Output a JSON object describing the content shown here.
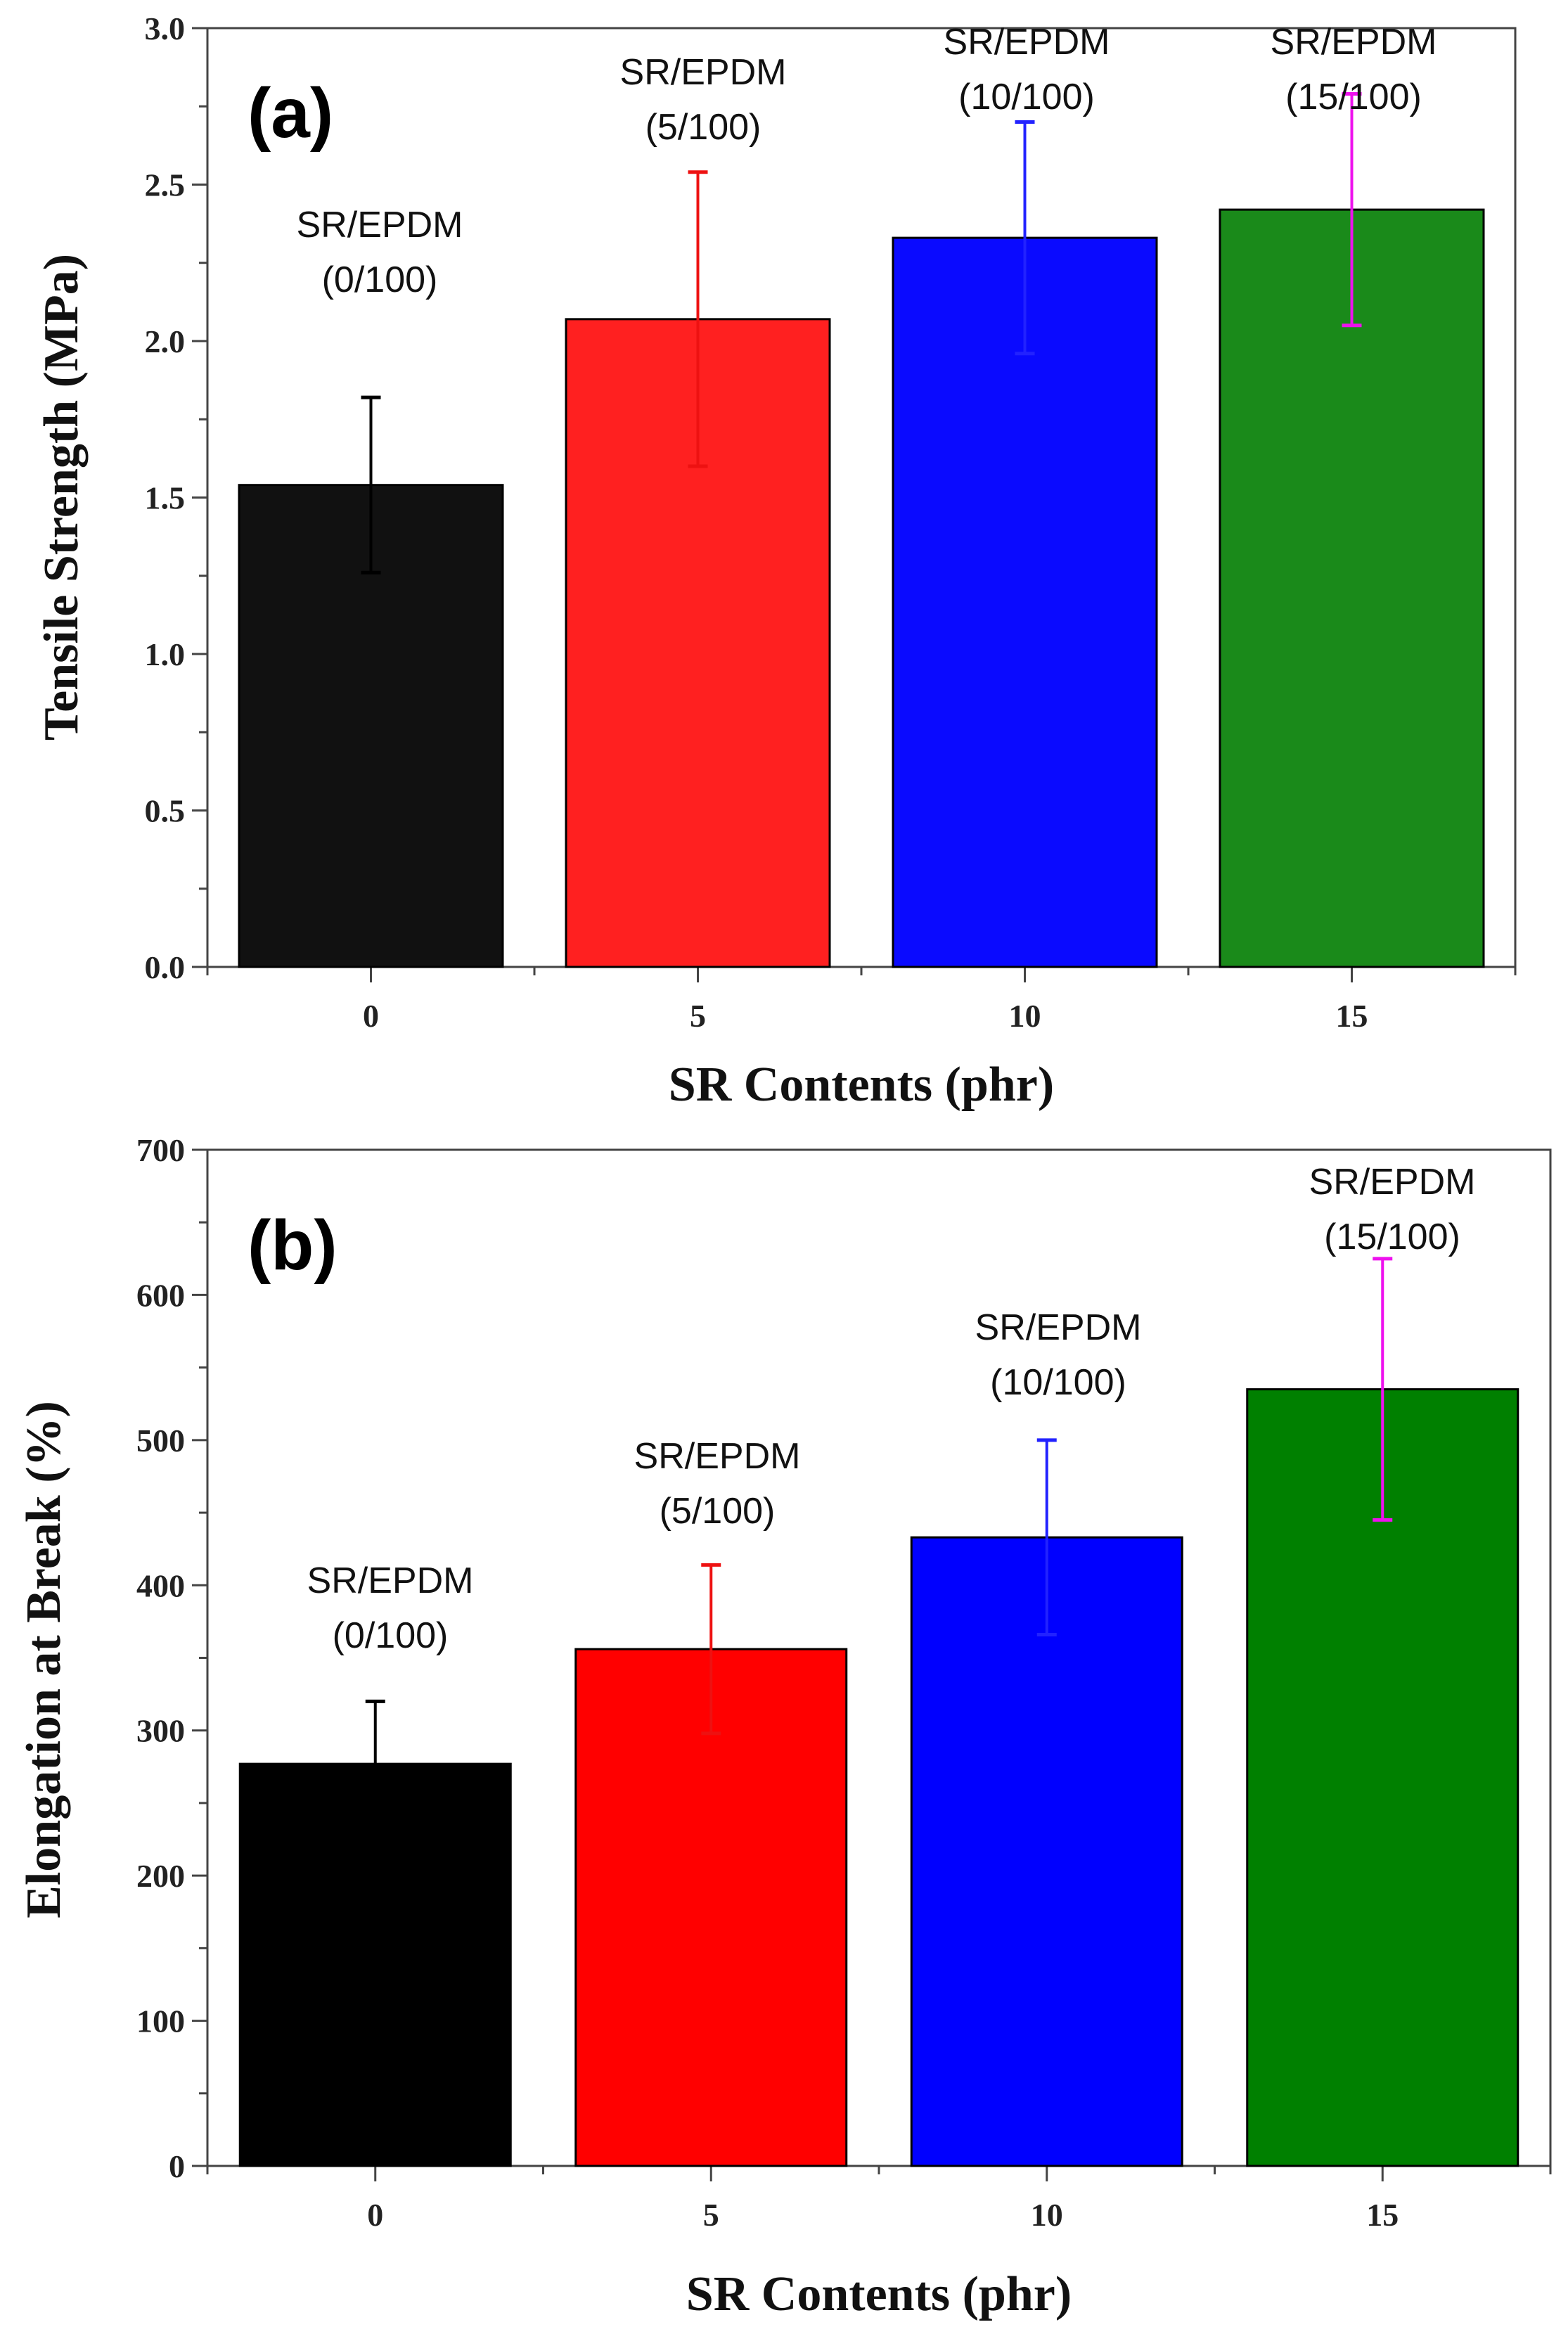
{
  "chart_data": [
    {
      "type": "bar",
      "panel_label": "(a)",
      "categories": [
        "0",
        "5",
        "10",
        "15"
      ],
      "values": [
        1.54,
        2.07,
        2.33,
        2.42
      ],
      "errors": [
        0.28,
        0.47,
        0.37,
        0.37
      ],
      "xlabel": "SR Contents (phr)",
      "ylabel": "Tensile Strength (MPa)",
      "ylim": [
        0,
        3.0
      ],
      "yticks": [
        "0.0",
        "0.5",
        "1.0",
        "1.5",
        "2.0",
        "2.5",
        "3.0"
      ],
      "annotations": [
        [
          "SR/EPDM",
          "(0/100)"
        ],
        [
          "SR/EPDM",
          "(5/100)"
        ],
        [
          "SR/EPDM",
          "(10/100)"
        ],
        [
          "SR/EPDM",
          "(15/100)"
        ]
      ],
      "bar_colors": [
        "#111111",
        "#ff2020",
        "#0a0aff",
        "#1a8a1a"
      ],
      "error_colors": [
        "#000000",
        "#ee1111",
        "#2222ff",
        "#ee11ee"
      ],
      "grid": false
    },
    {
      "type": "bar",
      "panel_label": "(b)",
      "categories": [
        "0",
        "5",
        "10",
        "15"
      ],
      "values": [
        277,
        356,
        433,
        535
      ],
      "errors": [
        43,
        58,
        67,
        90
      ],
      "xlabel": "SR Contents (phr)",
      "ylabel": "Elongation at Break (%)",
      "ylim": [
        0,
        700
      ],
      "yticks": [
        "0",
        "100",
        "200",
        "300",
        "400",
        "500",
        "600",
        "700"
      ],
      "annotations": [
        [
          "SR/EPDM",
          "(0/100)"
        ],
        [
          "SR/EPDM",
          "(5/100)"
        ],
        [
          "SR/EPDM",
          "(10/100)"
        ],
        [
          "SR/EPDM",
          "(15/100)"
        ]
      ],
      "bar_colors": [
        "#000000",
        "#ff0000",
        "#0000ff",
        "#008000"
      ],
      "error_colors": [
        "#000000",
        "#ee1111",
        "#2222ff",
        "#ee11ee"
      ],
      "grid": false
    }
  ]
}
